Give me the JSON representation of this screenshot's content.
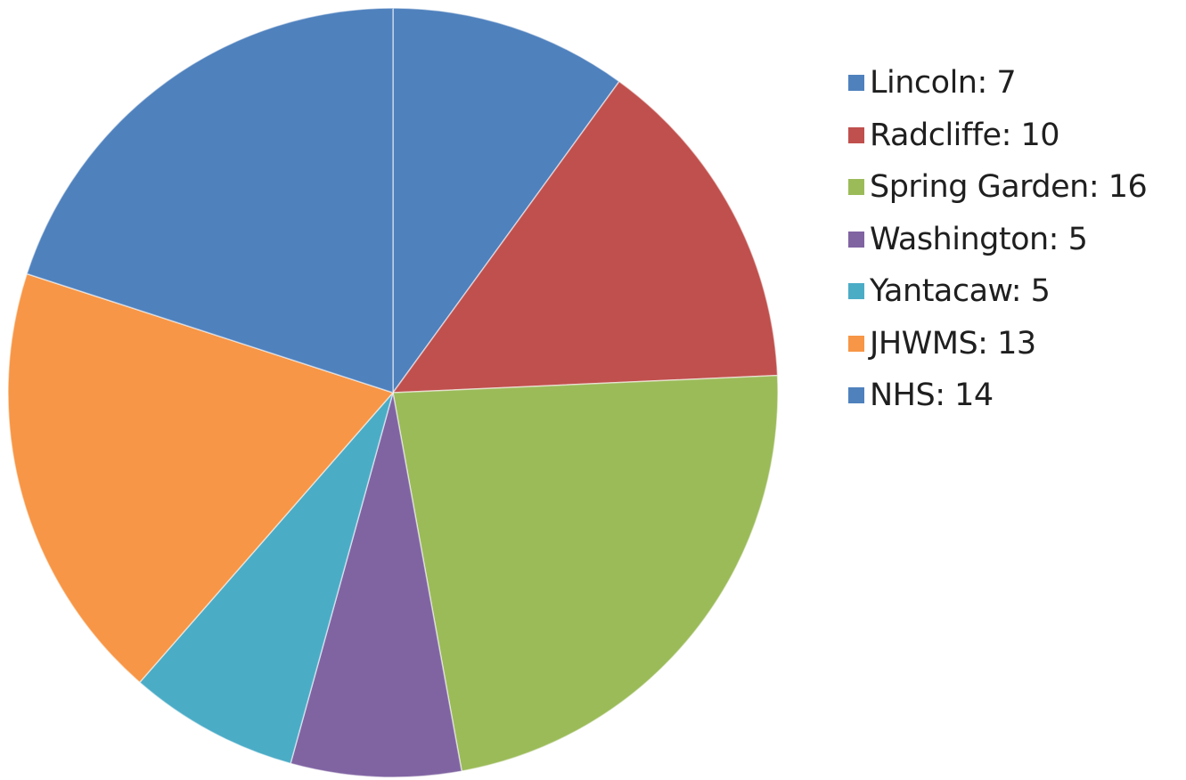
{
  "chart_data": {
    "type": "pie",
    "start_angle_deg": 0,
    "direction": "clockwise",
    "legend_position": "right",
    "slices": [
      {
        "label": "Lincoln: 7",
        "name": "Lincoln",
        "value": 7,
        "color": "#4F81BD"
      },
      {
        "label": "Radcliffe: 10",
        "name": "Radcliffe",
        "value": 10,
        "color": "#C0504D"
      },
      {
        "label": "Spring Garden: 16",
        "name": "Spring Garden",
        "value": 16,
        "color": "#9BBB59"
      },
      {
        "label": "Washington: 5",
        "name": "Washington",
        "value": 5,
        "color": "#8064A2"
      },
      {
        "label": "Yantacaw: 5",
        "name": "Yantacaw",
        "value": 5,
        "color": "#4BACC6"
      },
      {
        "label": "JHWMS: 13",
        "name": "JHWMS",
        "value": 13,
        "color": "#F79646"
      },
      {
        "label": "NHS: 14",
        "name": "NHS",
        "value": 14,
        "color": "#4F81BD"
      }
    ]
  }
}
